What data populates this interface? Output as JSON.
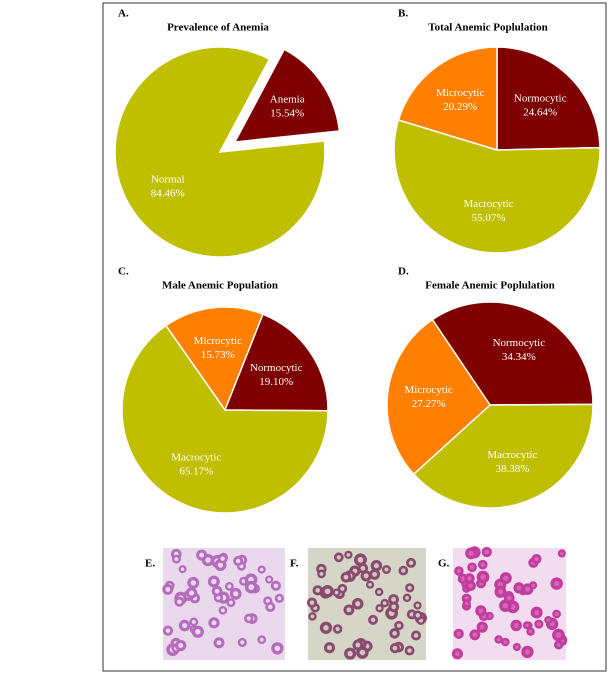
{
  "chart_data": [
    {
      "type": "pie",
      "label": "A.",
      "title": "Prevalence of Anemia",
      "categories": [
        "Normal",
        "Anemia"
      ],
      "values": [
        84.46,
        15.54
      ],
      "value_labels": [
        "84.46%",
        "15.54%"
      ],
      "colors": [
        "#bfbf00",
        "#7f0000"
      ],
      "explode": [
        false,
        true
      ],
      "start_angle": 84
    },
    {
      "type": "pie",
      "label": "B.",
      "title": "Total Anemic Poplulation",
      "categories": [
        "Normocytic",
        "Macrocytic",
        "Microcytic"
      ],
      "values": [
        24.64,
        55.07,
        20.29
      ],
      "value_labels": [
        "24.64%",
        "55.07%",
        "20.29%"
      ],
      "colors": [
        "#7f0000",
        "#bfbf00",
        "#ff8000"
      ],
      "explode": [
        false,
        false,
        false
      ],
      "start_angle": 0
    },
    {
      "type": "pie",
      "label": "C.",
      "title": "Male Anemic Population",
      "categories": [
        "Microcytic",
        "Normocytic",
        "Macrocytic"
      ],
      "values": [
        15.73,
        19.1,
        65.17
      ],
      "value_labels": [
        "15.73%",
        "19.10%",
        "65.17%"
      ],
      "colors": [
        "#ff8000",
        "#7f0000",
        "#bfbf00"
      ],
      "explode": [
        false,
        false,
        false
      ],
      "start_angle": -35
    },
    {
      "type": "pie",
      "label": "D.",
      "title": "Female Anemic Poplulation",
      "categories": [
        "Normocytic",
        "Macrocytic",
        "Microcytic"
      ],
      "values": [
        34.34,
        38.38,
        27.27
      ],
      "value_labels": [
        "34.34%",
        "38.38%",
        "27.27%"
      ],
      "colors": [
        "#7f0000",
        "#bfbf00",
        "#ff8000"
      ],
      "explode": [
        false,
        false,
        false
      ],
      "start_angle": -34
    }
  ],
  "images": [
    {
      "label": "E."
    },
    {
      "label": "F."
    },
    {
      "label": "G."
    }
  ]
}
